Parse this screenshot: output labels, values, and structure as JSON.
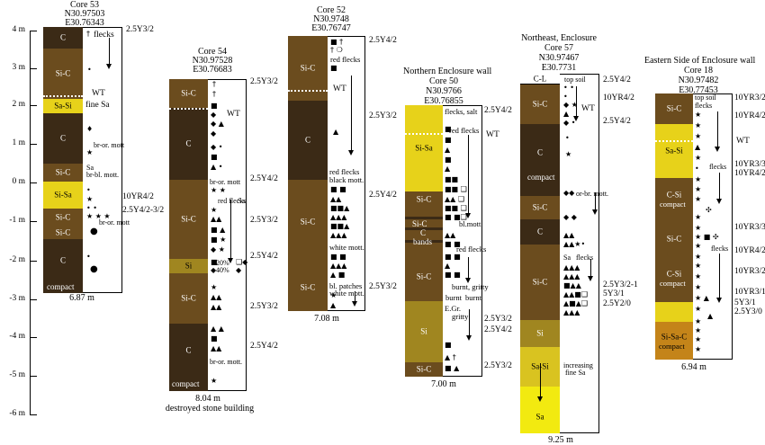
{
  "scale": {
    "labels": [
      "4 m",
      "3 m",
      "2 m",
      "1 m",
      "0 m",
      "-1 m",
      "-2 m",
      "-3 m",
      "-4 m",
      "-5 m",
      "-6 m"
    ]
  },
  "colors": {
    "C": "#3b2a16",
    "Si_C": "#6b4c1e",
    "Si": "#a08620",
    "Si_Sa": "#e7d21a",
    "Sa_Si": "#d9c320",
    "Sa": "#f2ea10",
    "Si_Sa_C": "#c48419",
    "C_L": "#ffffff"
  },
  "cores": [
    {
      "title": [
        "Core 53",
        "N30.97503",
        "E30.76343"
      ],
      "length": "6.87 m",
      "note": "",
      "units": [
        "C",
        "Si-C",
        "Sa-Si",
        "C",
        "Si-C",
        "Si-Sa",
        "Si-C",
        "Si-C",
        "C",
        "compact"
      ],
      "labels": [
        "2.5Y3/2",
        "10YR4/2",
        "2.5Y4/2-3/2"
      ],
      "annotations": [
        "flecks",
        "WT",
        "fine Sa",
        "br-or. mott",
        "Sa",
        "br-bl. mott.",
        "br-or. mott"
      ]
    },
    {
      "title": [
        "Core 54",
        "N30.97528",
        "E30.76683"
      ],
      "length": "8.04 m",
      "note": "destroyed stone building",
      "units": [
        "Si-C",
        "C",
        "Si-C",
        "Si",
        "Si-C",
        "C",
        "compact"
      ],
      "labels": [
        "2.5Y3/2",
        "2.5Y4/2",
        "2.5Y3/2",
        "2.5Y4/2",
        "2.5Y3/2",
        "2.5Y4/2",
        "2.5Y3/2",
        "2.5Y4/2"
      ],
      "annotations": [
        "WT",
        "br-or. mott",
        "red flecks",
        "Sa",
        "20%",
        "40%",
        "br-or. mott."
      ]
    },
    {
      "title": [
        "Core 52",
        "N30.9748",
        "E30.76747"
      ],
      "length": "7.08 m",
      "note": "",
      "units": [
        "Si-C",
        "C",
        "Si-C",
        "Si-C"
      ],
      "labels": [
        "2.5Y4/2",
        "2.5Y3/2",
        "2.5Y4/2",
        "2.5Y3/2"
      ],
      "annotations": [
        "red flecks",
        "WT",
        "red flecks",
        "black mott.",
        "white mott.",
        "bl. patches",
        "white mott."
      ]
    },
    {
      "title": [
        "Northern Enclosure wall",
        "Core 50",
        "N30.9766",
        "E30.76855"
      ],
      "length": "7.00 m",
      "note": "",
      "units": [
        "Si-Sa",
        "Si-C",
        "Si-C",
        "C",
        "bands",
        "Si-C",
        "Si",
        "Si-C"
      ],
      "labels": [
        "2.5Y4/2",
        "2.5Y3/2",
        "2.5Y4/2",
        "2.5Y3/2"
      ],
      "annotations": [
        "flecks, salt",
        "WT",
        "red flecks",
        "bl.mott.",
        "red flecks",
        "burnt, gritty",
        "burnt",
        "burnt",
        "E.Gr.",
        "gritty"
      ]
    },
    {
      "title": [
        "Northeast, Enclosure",
        "Core 57",
        "N30.97467",
        "E30.7731"
      ],
      "length": "9.25 m",
      "note": "",
      "units": [
        "C-L",
        "Si-C",
        "C",
        "compact",
        "Si-C",
        "C",
        "Si-C",
        "Si",
        "Sa-Si",
        "Sa"
      ],
      "labels": [
        "2.5Y4/2",
        "10YR4/2",
        "2.5Y4/2",
        "2.5Y3/2-1",
        "5Y3/1",
        "2.5Y2/0"
      ],
      "annotations": [
        "top soil",
        "WT",
        "or-br. mott.",
        "Sa",
        "flecks",
        "increasing",
        "fine Sa"
      ]
    },
    {
      "title": [
        "Eastern Side of Enclosure wall",
        "Core 18",
        "N30.97482",
        "E30.77453"
      ],
      "length": "6.94 m",
      "note": "",
      "units": [
        "Si-C",
        "Sa-Si",
        "C-Si",
        "compact",
        "Si-C",
        "C-Si",
        "compact",
        "Si-Sa-C",
        "compact"
      ],
      "labels": [
        "10YR3/2",
        "10YR4/2",
        "WT",
        "10YR3/3",
        "10YR4/2",
        "10YR3/3",
        "10YR4/2",
        "10YR3/2",
        "10YR3/1",
        "5Y3/1",
        "2.5Y3/0"
      ],
      "annotations": [
        "top soil",
        "flecks",
        "flecks",
        "flecks"
      ]
    }
  ]
}
